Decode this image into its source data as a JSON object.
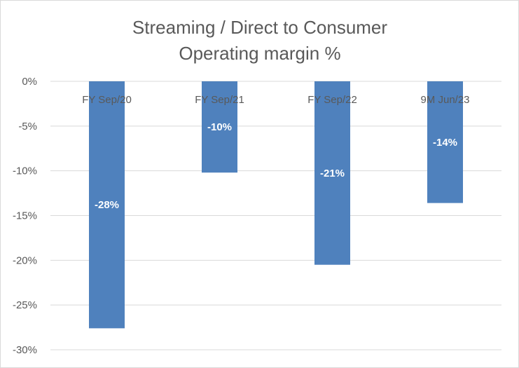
{
  "chart_data": {
    "type": "bar",
    "title": [
      "Streaming / Direct to Consumer",
      "Operating margin %"
    ],
    "categories": [
      "FY Sep/20",
      "FY Sep/21",
      "FY Sep/22",
      "9M Jun/23"
    ],
    "values": [
      -27.6,
      -10.2,
      -20.5,
      -13.6
    ],
    "data_labels": [
      "-28%",
      "-10%",
      "-21%",
      "-14%"
    ],
    "ylim": [
      -30,
      0
    ],
    "yticks": [
      0,
      -5,
      -10,
      -15,
      -20,
      -25,
      -30
    ],
    "ytick_labels": [
      "0%",
      "-5%",
      "-10%",
      "-15%",
      "-20%",
      "-25%",
      "-30%"
    ],
    "xlabel": "",
    "ylabel": "",
    "grid": true,
    "legend": "none",
    "bar_color": "#4f81bd"
  }
}
